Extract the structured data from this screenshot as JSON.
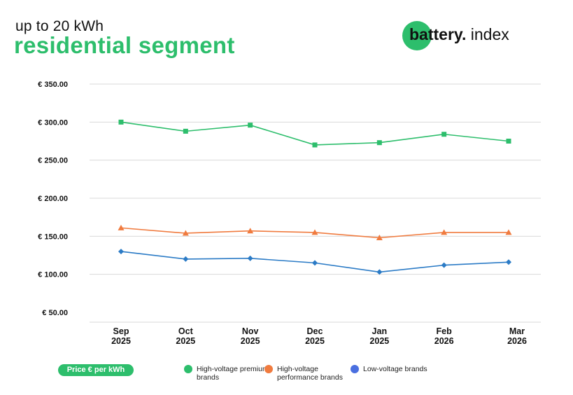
{
  "header": {
    "subtitle": "up to 20 kWh",
    "title": "residential segment"
  },
  "logo": {
    "bold": "battery.",
    "regular": " index"
  },
  "chart_data": {
    "type": "line",
    "title": "residential segment",
    "subtitle": "up to 20 kWh",
    "ylabel": "Price € per kWh",
    "xlabel": "",
    "ylim": [
      50,
      350
    ],
    "y_ticks": [
      50,
      100,
      150,
      200,
      250,
      300,
      350
    ],
    "y_tick_labels": [
      "€ 50.00",
      "€ 100.00",
      "€ 150.00",
      "€ 200.00",
      "€ 250.00",
      "€ 300.00",
      "€ 350.00"
    ],
    "grid": true,
    "categories": [
      {
        "month": "Sep",
        "year": "2025"
      },
      {
        "month": "Oct",
        "year": "2025"
      },
      {
        "month": "Nov",
        "year": "2025"
      },
      {
        "month": "Dec",
        "year": "2025"
      },
      {
        "month": "Jan",
        "year": "2025"
      },
      {
        "month": "Feb",
        "year": "2026"
      },
      {
        "month": "Mar",
        "year": "2026"
      }
    ],
    "series": [
      {
        "name": "High-voltage premium brands",
        "color": "#2dbe6c",
        "marker": "square",
        "values": [
          300,
          288,
          296,
          270,
          273,
          284,
          275
        ]
      },
      {
        "name": "High-voltage performance brands",
        "color": "#f07b3f",
        "marker": "triangle",
        "values": [
          161,
          154,
          157,
          155,
          148,
          155,
          155
        ]
      },
      {
        "name": "Low-voltage brands",
        "color": "#2b7bc6",
        "marker": "diamond",
        "values": [
          130,
          120,
          121,
          115,
          103,
          112,
          116
        ]
      }
    ],
    "legend_position": "bottom"
  },
  "legend": {
    "axis_pill": "Price € per kWh",
    "items": [
      {
        "label": "High-voltage premium brands",
        "color": "#2dbe6c"
      },
      {
        "label": "High-voltage performance brands",
        "color": "#f07b3f"
      },
      {
        "label": "Low-voltage brands",
        "color": "#4a6fe0"
      }
    ]
  }
}
